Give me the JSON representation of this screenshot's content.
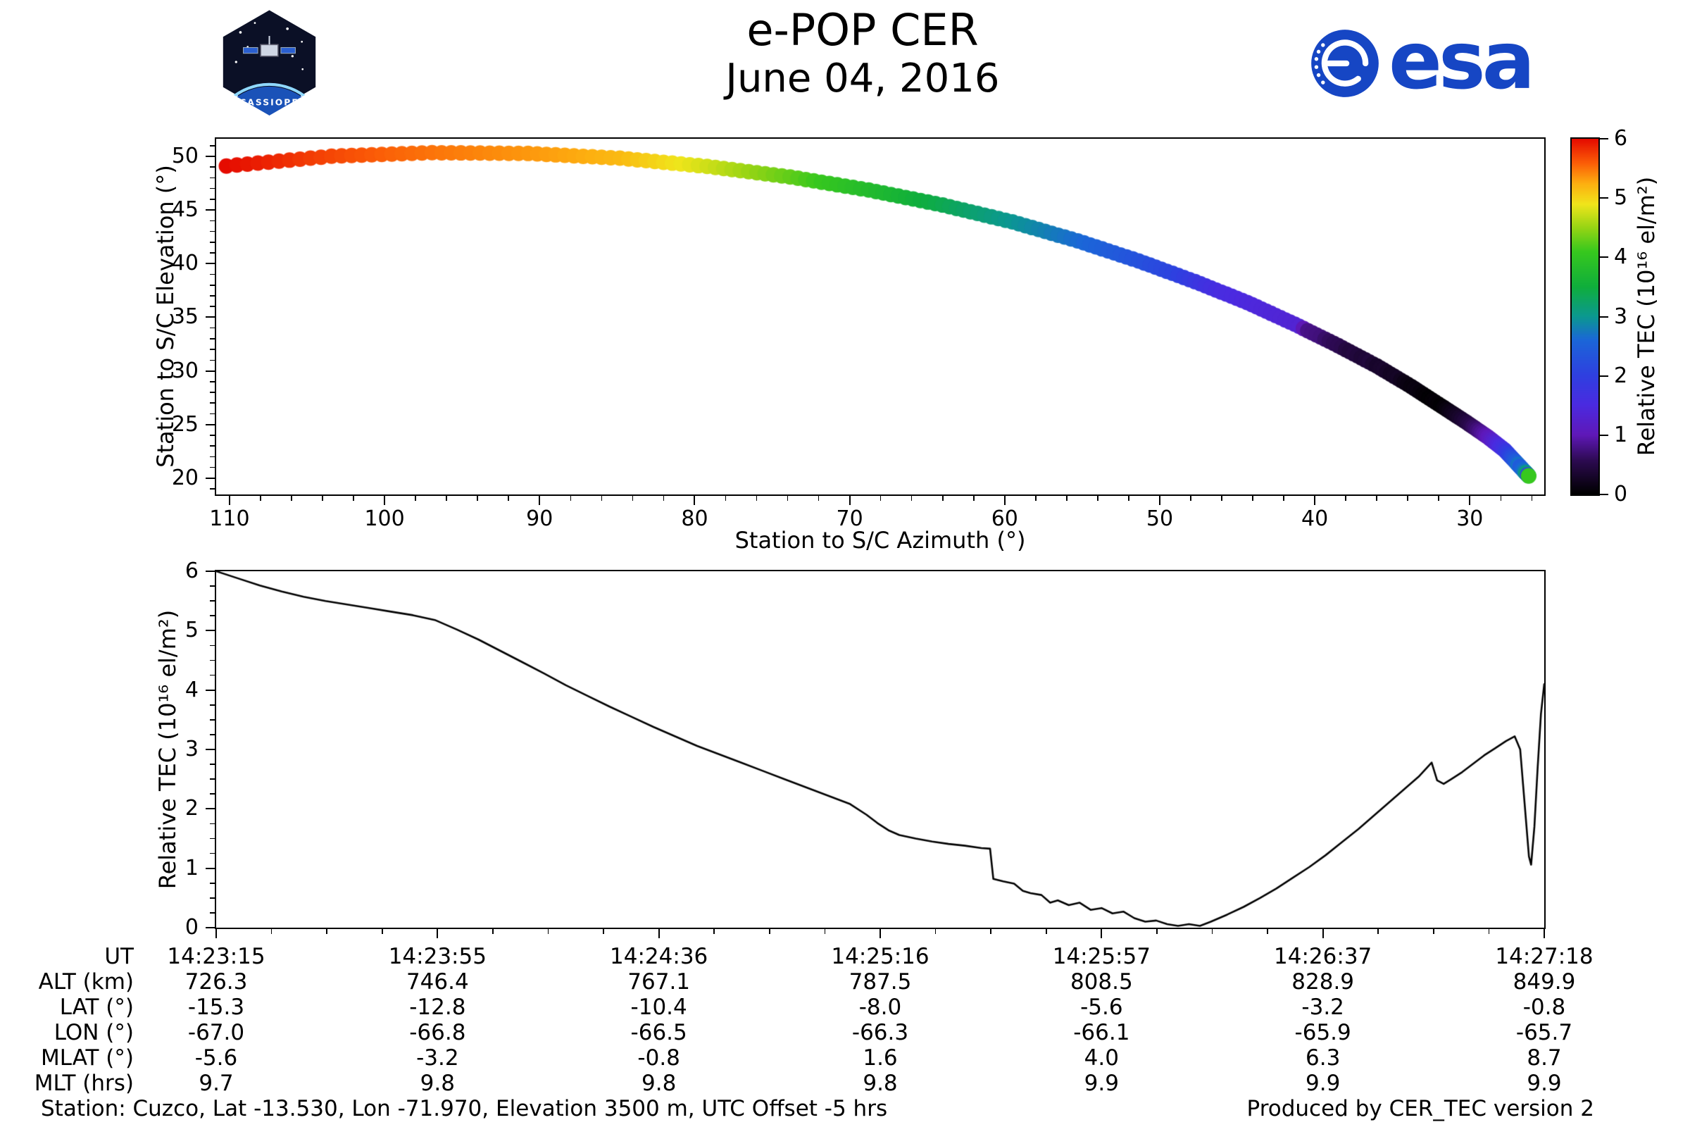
{
  "header": {
    "title": "e-POP CER",
    "date": "June 04, 2016",
    "esa_text": "esa",
    "cassiope_text": "CASSIOPE"
  },
  "colors": {
    "esa_blue": "#1646c4",
    "line": "#000000",
    "frame": "#000000",
    "background": "#ffffff"
  },
  "chart_data": [
    {
      "type": "scatter",
      "xlabel": "Station to S/C Azimuth (°)",
      "ylabel": "Station to S/C Elevation (°)",
      "xlim": [
        110.86,
        25.2
      ],
      "x_reversed": true,
      "ylim": [
        18.48,
        51.64
      ],
      "xticks": [
        110,
        100,
        90,
        80,
        70,
        60,
        50,
        40,
        30
      ],
      "yticks": [
        20,
        25,
        30,
        35,
        40,
        45,
        50
      ],
      "marker_size_px": 11,
      "n_points": 244,
      "duration_s": 243,
      "track_t_az_el": [
        [
          0,
          110.2,
          49.1
        ],
        [
          10,
          103.42,
          50.01
        ],
        [
          20,
          96.94,
          50.34
        ],
        [
          30,
          90.74,
          50.27
        ],
        [
          40,
          84.82,
          49.83
        ],
        [
          50,
          79.19,
          49.06
        ],
        [
          60,
          73.84,
          48.08
        ],
        [
          70,
          68.77,
          46.86
        ],
        [
          80,
          64.0,
          45.46
        ],
        [
          90,
          59.5,
          43.89
        ],
        [
          100,
          55.29,
          42.12
        ],
        [
          110,
          51.36,
          40.25
        ],
        [
          120,
          47.72,
          38.32
        ],
        [
          130,
          44.36,
          36.38
        ],
        [
          140,
          41.29,
          34.35
        ],
        [
          150,
          38.5,
          32.36
        ],
        [
          160,
          36.0,
          30.46
        ],
        [
          170,
          33.78,
          28.55
        ],
        [
          180,
          31.85,
          26.74
        ],
        [
          190,
          30.2,
          25.19
        ],
        [
          200,
          28.83,
          23.83
        ],
        [
          210,
          27.75,
          22.61
        ],
        [
          220,
          26.95,
          21.37
        ],
        [
          230,
          26.44,
          20.57
        ],
        [
          243,
          26.2,
          20.2
        ]
      ],
      "colorbar": {
        "label": "Relative TEC (10¹⁶ el/m²)",
        "range": [
          0,
          6
        ],
        "ticks": [
          0,
          1,
          2,
          3,
          4,
          5,
          6
        ],
        "colormap_stops": [
          [
            0.0,
            "#000000"
          ],
          [
            0.55,
            "#2b0a4e"
          ],
          [
            1.0,
            "#5f18b8"
          ],
          [
            1.5,
            "#4b2ae0"
          ],
          [
            2.0,
            "#2f3fe0"
          ],
          [
            2.6,
            "#1b66d8"
          ],
          [
            3.0,
            "#0b9890"
          ],
          [
            3.5,
            "#0fae3c"
          ],
          [
            4.1,
            "#37c81e"
          ],
          [
            4.5,
            "#96d414"
          ],
          [
            4.9,
            "#f0e51b"
          ],
          [
            5.25,
            "#fdae10"
          ],
          [
            5.6,
            "#fb5c07"
          ],
          [
            6.0,
            "#e50b00"
          ]
        ]
      }
    },
    {
      "type": "line",
      "ylabel": "Relative TEC (10¹⁶ el/m²)",
      "ylim": [
        0,
        6
      ],
      "yticks": [
        0,
        1,
        2,
        3,
        4,
        5,
        6
      ],
      "x_range_s": [
        0,
        243
      ],
      "series": [
        {
          "name": "Relative TEC",
          "points": [
            [
              0,
              6.0
            ],
            [
              4,
              5.88
            ],
            [
              8,
              5.76
            ],
            [
              12,
              5.66
            ],
            [
              16,
              5.57
            ],
            [
              20,
              5.5
            ],
            [
              24,
              5.44
            ],
            [
              28,
              5.38
            ],
            [
              32,
              5.32
            ],
            [
              36,
              5.26
            ],
            [
              40,
              5.18
            ],
            [
              44,
              5.02
            ],
            [
              48,
              4.85
            ],
            [
              52,
              4.66
            ],
            [
              56,
              4.47
            ],
            [
              60,
              4.28
            ],
            [
              64,
              4.08
            ],
            [
              68,
              3.9
            ],
            [
              72,
              3.72
            ],
            [
              76,
              3.55
            ],
            [
              80,
              3.38
            ],
            [
              84,
              3.22
            ],
            [
              88,
              3.06
            ],
            [
              92,
              2.92
            ],
            [
              96,
              2.78
            ],
            [
              100,
              2.64
            ],
            [
              104,
              2.5
            ],
            [
              108,
              2.36
            ],
            [
              112,
              2.22
            ],
            [
              116,
              2.08
            ],
            [
              119,
              1.9
            ],
            [
              121,
              1.76
            ],
            [
              123,
              1.64
            ],
            [
              125,
              1.56
            ],
            [
              128,
              1.5
            ],
            [
              131,
              1.45
            ],
            [
              134,
              1.41
            ],
            [
              137,
              1.38
            ],
            [
              140,
              1.34
            ],
            [
              141.6,
              1.33
            ],
            [
              142.2,
              0.82
            ],
            [
              144,
              0.78
            ],
            [
              146,
              0.74
            ],
            [
              147.6,
              0.62
            ],
            [
              149,
              0.58
            ],
            [
              151,
              0.55
            ],
            [
              152.6,
              0.42
            ],
            [
              154,
              0.46
            ],
            [
              156,
              0.38
            ],
            [
              158,
              0.42
            ],
            [
              160,
              0.3
            ],
            [
              162,
              0.33
            ],
            [
              164,
              0.24
            ],
            [
              166,
              0.27
            ],
            [
              168,
              0.16
            ],
            [
              170,
              0.1
            ],
            [
              172,
              0.12
            ],
            [
              174,
              0.06
            ],
            [
              176,
              0.03
            ],
            [
              178,
              0.06
            ],
            [
              180,
              0.03
            ],
            [
              182,
              0.1
            ],
            [
              185,
              0.22
            ],
            [
              188,
              0.35
            ],
            [
              191,
              0.5
            ],
            [
              194,
              0.66
            ],
            [
              197,
              0.84
            ],
            [
              200,
              1.02
            ],
            [
              203,
              1.22
            ],
            [
              206,
              1.44
            ],
            [
              209,
              1.66
            ],
            [
              212,
              1.9
            ],
            [
              215,
              2.14
            ],
            [
              218,
              2.38
            ],
            [
              220,
              2.54
            ],
            [
              221.6,
              2.7
            ],
            [
              222.4,
              2.78
            ],
            [
              223.4,
              2.48
            ],
            [
              224.6,
              2.42
            ],
            [
              226,
              2.5
            ],
            [
              228,
              2.62
            ],
            [
              230,
              2.76
            ],
            [
              232,
              2.9
            ],
            [
              234,
              3.02
            ],
            [
              236,
              3.14
            ],
            [
              237.6,
              3.22
            ],
            [
              238.6,
              3.0
            ],
            [
              239.4,
              2.1
            ],
            [
              240.2,
              1.2
            ],
            [
              240.6,
              1.06
            ],
            [
              241.2,
              1.7
            ],
            [
              241.8,
              2.7
            ],
            [
              242.4,
              3.6
            ],
            [
              243,
              4.1
            ]
          ]
        }
      ]
    }
  ],
  "axis_table": {
    "rows": [
      {
        "label": "UT",
        "values": [
          "14:23:15",
          "14:23:55",
          "14:24:36",
          "14:25:16",
          "14:25:57",
          "14:26:37",
          "14:27:18"
        ]
      },
      {
        "label": "ALT (km)",
        "values": [
          "726.3",
          "746.4",
          "767.1",
          "787.5",
          "808.5",
          "828.9",
          "849.9"
        ]
      },
      {
        "label": "LAT (°)",
        "values": [
          "-15.3",
          "-12.8",
          "-10.4",
          "-8.0",
          "-5.6",
          "-3.2",
          "-0.8"
        ]
      },
      {
        "label": "LON (°)",
        "values": [
          "-67.0",
          "-66.8",
          "-66.5",
          "-66.3",
          "-66.1",
          "-65.9",
          "-65.7"
        ]
      },
      {
        "label": "MLAT (°)",
        "values": [
          "-5.6",
          "-3.2",
          "-0.8",
          "1.6",
          "4.0",
          "6.3",
          "8.7"
        ]
      },
      {
        "label": "MLT (hrs)",
        "values": [
          "9.7",
          "9.8",
          "9.8",
          "9.8",
          "9.9",
          "9.9",
          "9.9"
        ]
      }
    ]
  },
  "footer": {
    "left": "Station: Cuzco, Lat -13.530, Lon -71.970, Elevation 3500 m, UTC Offset -5 hrs",
    "right": "Produced by CER_TEC version 2"
  }
}
